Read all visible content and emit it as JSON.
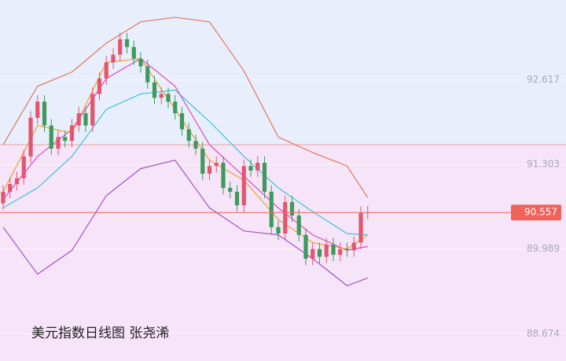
{
  "chart_data": {
    "type": "candlestick",
    "title": "美元指数日线图 张尧浠",
    "ylim": [
      88.25,
      93.86
    ],
    "yticks": [
      92.617,
      91.303,
      89.989,
      88.674
    ],
    "grid": true,
    "up_color": "#e2566e",
    "down_color": "#3d9a5c",
    "last_price": 90.557,
    "last_price_color": "#f0625a",
    "open": [
      90.7,
      90.88,
      91.0,
      91.09,
      91.43,
      92.03,
      92.28,
      91.91,
      91.55,
      91.73,
      91.67,
      91.91,
      92.1,
      91.91,
      92.4,
      92.64,
      92.89,
      93.01,
      93.25,
      93.13,
      92.95,
      92.83,
      92.58,
      92.34,
      92.4,
      92.28,
      92.1,
      91.85,
      91.67,
      91.55,
      91.16,
      91.28,
      91.33,
      90.94,
      90.88,
      90.67,
      91.28,
      91.21,
      91.33,
      90.88,
      90.33,
      90.23,
      90.72,
      90.51,
      90.21,
      89.84,
      89.99,
      89.87,
      90.06,
      89.9,
      89.99,
      89.97,
      90.09,
      90.55
    ],
    "high": [
      90.98,
      91.1,
      91.19,
      91.53,
      92.13,
      92.38,
      92.38,
      92.01,
      91.83,
      91.83,
      92.01,
      92.2,
      92.2,
      92.5,
      92.74,
      92.99,
      93.11,
      93.35,
      93.35,
      93.23,
      93.05,
      92.93,
      92.68,
      92.5,
      92.5,
      92.38,
      92.2,
      91.95,
      91.77,
      91.65,
      91.38,
      91.43,
      91.43,
      91.04,
      90.98,
      91.38,
      91.38,
      91.43,
      91.43,
      90.98,
      90.43,
      90.82,
      90.82,
      90.61,
      90.31,
      90.09,
      90.09,
      90.16,
      90.16,
      90.09,
      90.09,
      90.19,
      90.65,
      90.66
    ],
    "low": [
      90.6,
      90.78,
      90.9,
      90.99,
      91.33,
      91.93,
      91.81,
      91.45,
      91.45,
      91.57,
      91.57,
      91.81,
      91.81,
      91.81,
      92.3,
      92.54,
      92.79,
      92.91,
      93.03,
      92.85,
      92.73,
      92.48,
      92.24,
      92.24,
      92.18,
      92.0,
      91.75,
      91.57,
      91.45,
      91.06,
      91.06,
      91.18,
      90.84,
      90.78,
      90.57,
      90.57,
      91.11,
      91.11,
      90.78,
      90.23,
      90.13,
      90.13,
      90.41,
      90.11,
      89.74,
      89.74,
      89.77,
      89.77,
      89.8,
      89.8,
      89.87,
      89.87,
      89.99,
      90.45
    ],
    "close": [
      90.88,
      91.0,
      91.09,
      91.43,
      92.03,
      92.28,
      91.91,
      91.55,
      91.73,
      91.67,
      91.91,
      92.1,
      91.91,
      92.4,
      92.64,
      92.89,
      93.01,
      93.25,
      93.13,
      92.95,
      92.83,
      92.58,
      92.34,
      92.4,
      92.28,
      92.1,
      91.85,
      91.67,
      91.55,
      91.16,
      91.28,
      91.33,
      90.94,
      90.88,
      90.67,
      91.28,
      91.21,
      91.33,
      90.88,
      90.33,
      90.23,
      90.72,
      90.51,
      90.21,
      89.84,
      89.99,
      89.87,
      90.06,
      89.9,
      89.99,
      89.97,
      90.09,
      90.55,
      90.56
    ],
    "lines_x": [
      0,
      5,
      10,
      15,
      20,
      25,
      30,
      35,
      40,
      45,
      50,
      53
    ],
    "lines": [
      {
        "color": "#e0785a",
        "values": [
          91.61,
          92.52,
          92.74,
          93.19,
          93.52,
          93.59,
          93.52,
          92.76,
          91.73,
          91.49,
          91.28,
          90.79
        ]
      },
      {
        "color": "#3cc4da",
        "values": [
          90.63,
          90.94,
          91.43,
          92.16,
          92.4,
          92.46,
          91.97,
          91.43,
          90.94,
          90.57,
          90.23,
          90.21
        ]
      },
      {
        "color": "#a455c4",
        "values": [
          90.33,
          89.6,
          89.97,
          90.82,
          91.24,
          91.37,
          90.63,
          90.27,
          90.21,
          89.84,
          89.42,
          89.54
        ]
      },
      {
        "color": "#e048c4",
        "values": [
          90.76,
          91.43,
          91.85,
          92.64,
          92.95,
          92.52,
          91.61,
          91.12,
          90.63,
          90.21,
          89.97,
          90.03
        ]
      },
      {
        "color": "#f0a030",
        "values": [
          90.88,
          91.91,
          91.79,
          92.89,
          92.95,
          92.16,
          91.37,
          91.06,
          90.45,
          90.09,
          89.99,
          90.21
        ]
      }
    ]
  }
}
